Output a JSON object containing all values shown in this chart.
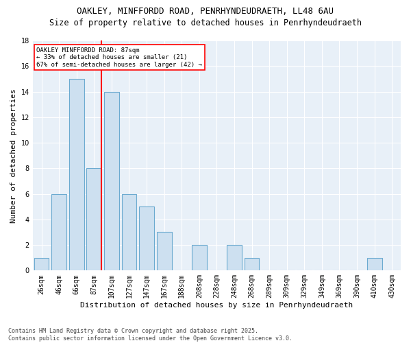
{
  "title1": "OAKLEY, MINFFORDD ROAD, PENRHYNDEUDRAETH, LL48 6AU",
  "title2": "Size of property relative to detached houses in Penrhyndeudraeth",
  "xlabel": "Distribution of detached houses by size in Penrhyndeudraeth",
  "ylabel": "Number of detached properties",
  "bins": [
    "26sqm",
    "46sqm",
    "66sqm",
    "87sqm",
    "107sqm",
    "127sqm",
    "147sqm",
    "167sqm",
    "188sqm",
    "208sqm",
    "228sqm",
    "248sqm",
    "268sqm",
    "289sqm",
    "309sqm",
    "329sqm",
    "349sqm",
    "369sqm",
    "390sqm",
    "410sqm",
    "430sqm"
  ],
  "values": [
    1,
    6,
    15,
    8,
    14,
    6,
    5,
    3,
    0,
    2,
    0,
    2,
    1,
    0,
    0,
    0,
    0,
    0,
    0,
    1,
    0
  ],
  "bar_color": "#cde0f0",
  "bar_edge_color": "#6baad0",
  "vline_x_index": 3,
  "vline_color": "red",
  "annotation_text": "OAKLEY MINFFORDD ROAD: 87sqm\n← 33% of detached houses are smaller (21)\n67% of semi-detached houses are larger (42) →",
  "annotation_box_color": "white",
  "annotation_box_edge": "red",
  "ylim": [
    0,
    18
  ],
  "yticks": [
    0,
    2,
    4,
    6,
    8,
    10,
    12,
    14,
    16,
    18
  ],
  "footer": "Contains HM Land Registry data © Crown copyright and database right 2025.\nContains public sector information licensed under the Open Government Licence v3.0.",
  "bg_color": "#ffffff",
  "plot_bg_color": "#e8f0f8",
  "grid_color": "#ffffff",
  "title_fontsize": 9,
  "subtitle_fontsize": 8.5,
  "axis_label_fontsize": 8,
  "tick_fontsize": 7,
  "footer_fontsize": 6
}
